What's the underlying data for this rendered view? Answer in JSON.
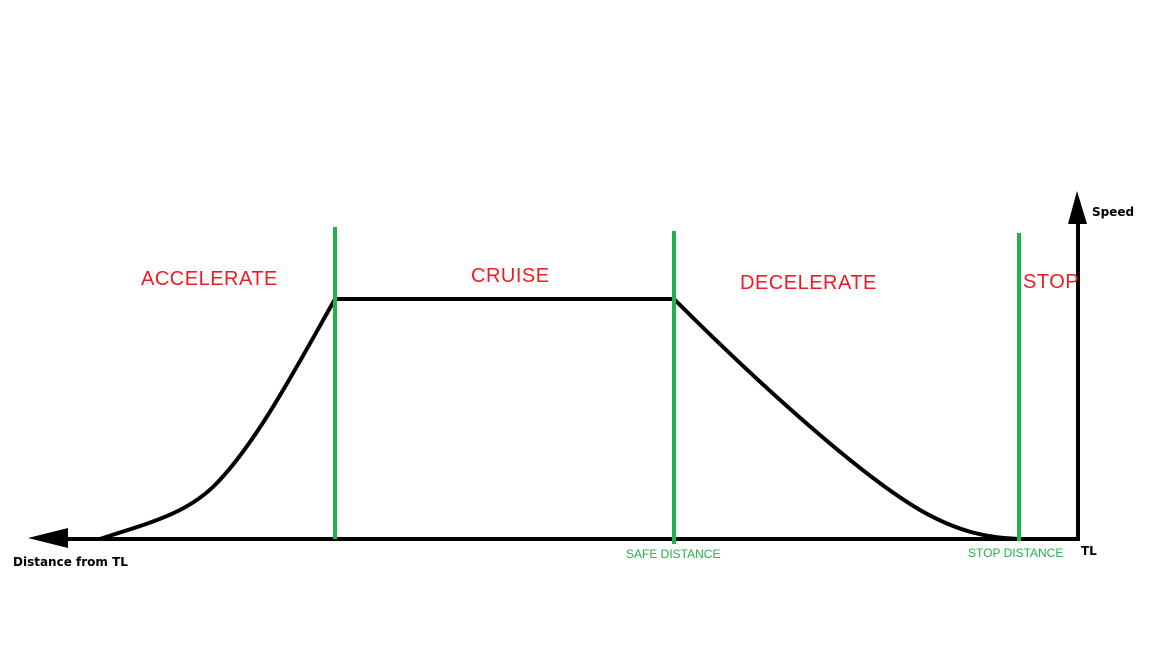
{
  "axes": {
    "y_label": "Speed",
    "x_label": "Distance from TL",
    "origin_label": "TL"
  },
  "phases": {
    "accelerate": "ACCELERATE",
    "cruise": "CRUISE",
    "decelerate": "DECELERATE",
    "stop": "STOP"
  },
  "markers": {
    "safe_distance": "SAFE DISTANCE",
    "stop_distance": "STOP DISTANCE"
  },
  "colors": {
    "curve": "#000000",
    "axis": "#000000",
    "divider": "#22b14c",
    "phase_text": "#ed1c24",
    "marker_text": "#22b14c"
  }
}
